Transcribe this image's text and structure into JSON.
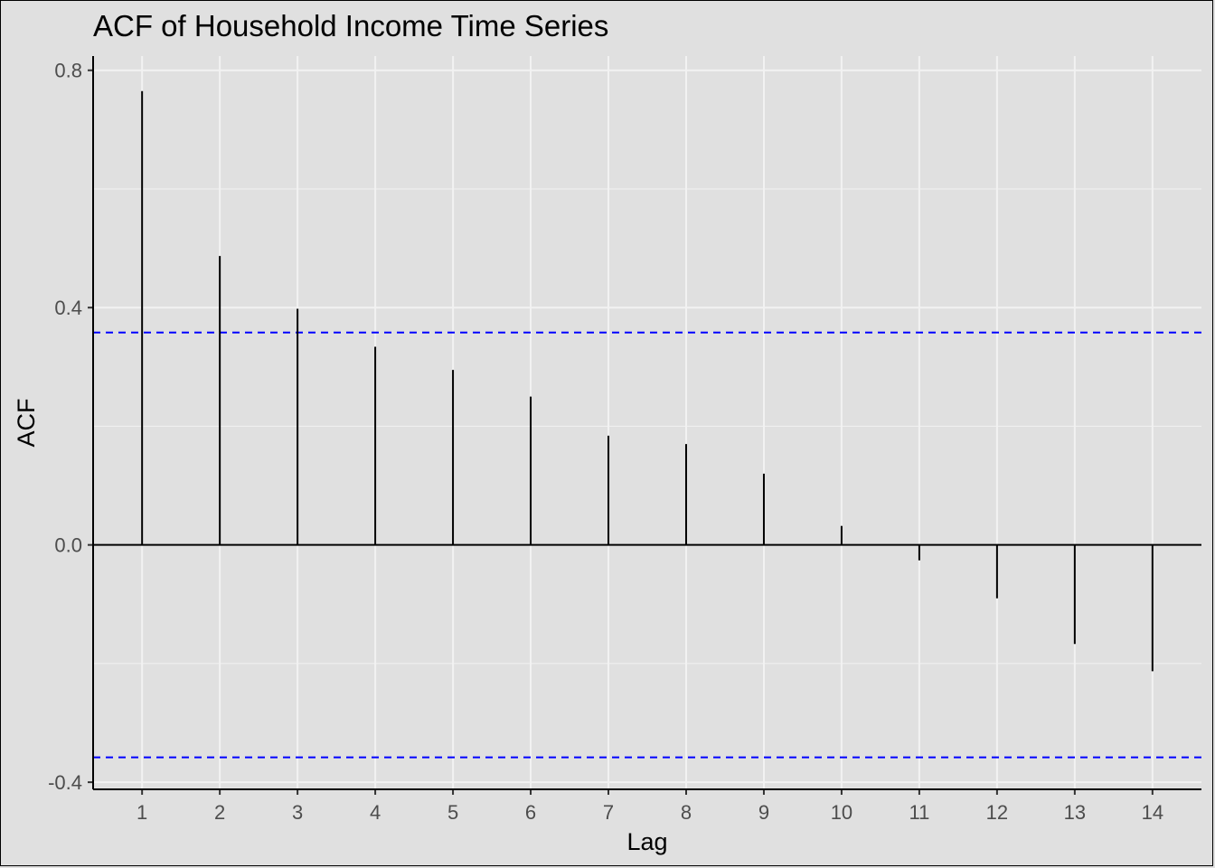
{
  "chart_data": {
    "type": "bar",
    "title": "ACF of Household Income Time Series",
    "xlabel": "Lag",
    "ylabel": "ACF",
    "x": [
      1,
      2,
      3,
      4,
      5,
      6,
      7,
      8,
      9,
      10,
      11,
      12,
      13,
      14
    ],
    "values": [
      0.765,
      0.487,
      0.398,
      0.334,
      0.295,
      0.25,
      0.184,
      0.17,
      0.12,
      0.032,
      -0.026,
      -0.09,
      -0.167,
      -0.213
    ],
    "xlim": [
      0.37,
      14.63
    ],
    "ylim": [
      -0.412,
      0.824
    ],
    "yticks": [
      -0.4,
      0.0,
      0.4,
      0.8
    ],
    "ytick_labels": [
      "-0.4",
      "0.0",
      "0.4",
      "0.8"
    ],
    "confidence_bounds": [
      0.358,
      -0.358
    ],
    "colors": {
      "spikes": "#000000",
      "bounds": "#0000FF",
      "panel": "#E0E0E0",
      "grid": "#F2F2F2"
    },
    "grid": true,
    "legend": "none"
  }
}
